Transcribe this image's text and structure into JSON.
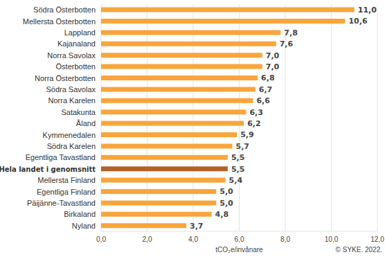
{
  "chart_data": {
    "type": "bar",
    "orientation": "horizontal",
    "categories": [
      "Södra Österbotten",
      "Mellersta Österbotten",
      "Lappland",
      "Kajanaland",
      "Norra Savolax",
      "Österbotten",
      "Norra Österbotten",
      "Södra Savolax",
      "Norra Karelen",
      "Satakunta",
      "Åland",
      "Kymmenedalen",
      "Södra Karelen",
      "Egentliga Tavastland",
      "Hela landet i genomsnitt",
      "Mellersta Finland",
      "Egentliga Finland",
      "Päijänne-Tavastland",
      "Birkaland",
      "Nyland"
    ],
    "values": [
      11.0,
      10.6,
      7.8,
      7.6,
      7.0,
      7.0,
      6.8,
      6.7,
      6.6,
      6.3,
      6.2,
      5.9,
      5.7,
      5.5,
      5.5,
      5.4,
      5.0,
      5.0,
      4.8,
      3.7
    ],
    "value_labels": [
      "11,0",
      "10,6",
      "7,8",
      "7,6",
      "7,0",
      "7,0",
      "6,8",
      "6,7",
      "6,6",
      "6,3",
      "6,2",
      "5,9",
      "5,7",
      "5,5",
      "5,5",
      "5,4",
      "5,0",
      "5,0",
      "4,8",
      "3,7"
    ],
    "data_labels": true,
    "colors": [
      "#f9a53b",
      "#f9a53b",
      "#f9a53b",
      "#f9a53b",
      "#f9a53b",
      "#f9a53b",
      "#f9a53b",
      "#f9a53b",
      "#f9a53b",
      "#f9a53b",
      "#f9a53b",
      "#f9a53b",
      "#f9a53b",
      "#f9a53b",
      "#b3612b",
      "#f9a53b",
      "#f9a53b",
      "#f9a53b",
      "#f9a53b",
      "#f9a53b"
    ],
    "xlabel": "tCO₂e/invånare",
    "xlim": [
      0,
      12
    ],
    "xticks": [
      {
        "value": 0,
        "label": "0,0"
      },
      {
        "value": 2,
        "label": "2,0"
      },
      {
        "value": 4,
        "label": "4,0"
      },
      {
        "value": 6,
        "label": "6,0"
      },
      {
        "value": 8,
        "label": "8,0"
      },
      {
        "value": 10,
        "label": "10,0"
      },
      {
        "value": 12,
        "label": "12,0"
      }
    ],
    "grid": true,
    "annotations": [
      "© SYKE. 2022."
    ]
  }
}
